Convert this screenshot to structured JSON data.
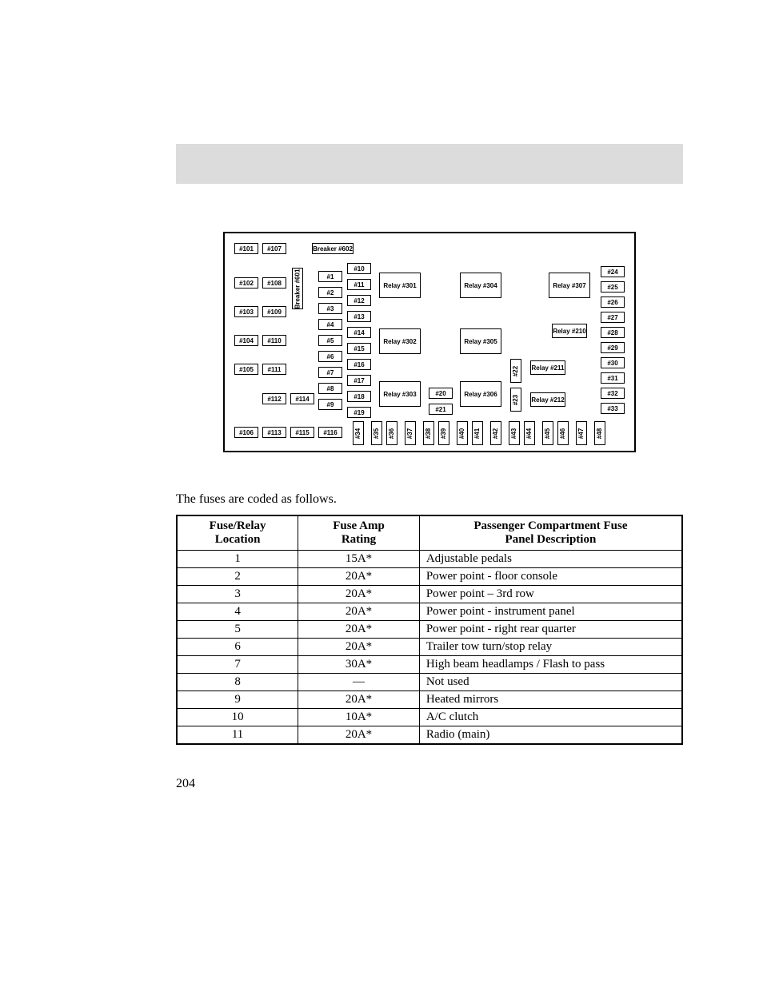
{
  "intro_text": "The fuses are coded as follows.",
  "page_number": "204",
  "headers": {
    "loc1": "Fuse/Relay",
    "loc2": "Location",
    "amp1": "Fuse Amp",
    "amp2": "Rating",
    "desc1": "Passenger Compartment Fuse",
    "desc2": "Panel Description"
  },
  "rows": [
    {
      "loc": "1",
      "amp": "15A*",
      "desc": "Adjustable pedals"
    },
    {
      "loc": "2",
      "amp": "20A*",
      "desc": "Power point - floor console"
    },
    {
      "loc": "3",
      "amp": "20A*",
      "desc": "Power point – 3rd row"
    },
    {
      "loc": "4",
      "amp": "20A*",
      "desc": "Power point - instrument panel"
    },
    {
      "loc": "5",
      "amp": "20A*",
      "desc": "Power point - right rear quarter"
    },
    {
      "loc": "6",
      "amp": "20A*",
      "desc": "Trailer tow turn/stop relay"
    },
    {
      "loc": "7",
      "amp": "30A*",
      "desc": "High beam headlamps / Flash to pass"
    },
    {
      "loc": "8",
      "amp": "—",
      "desc": "Not used"
    },
    {
      "loc": "9",
      "amp": "20A*",
      "desc": "Heated mirrors"
    },
    {
      "loc": "10",
      "amp": "10A*",
      "desc": "A/C clutch"
    },
    {
      "loc": "11",
      "amp": "20A*",
      "desc": "Radio (main)"
    }
  ],
  "diagram": {
    "breaker602": "Breaker  #602",
    "breaker601": "Breaker  #601",
    "col_left1": [
      "#101",
      "#102",
      "#103",
      "#104",
      "#105",
      "#106"
    ],
    "col_left2": [
      "#107",
      "#108",
      "#109",
      "#110",
      "#111",
      "#112",
      "#113"
    ],
    "col_left3": [
      "#114",
      "#115"
    ],
    "col_116": "#116",
    "col_mid1": [
      "#1",
      "#2",
      "#3",
      "#4",
      "#5",
      "#6",
      "#7",
      "#8",
      "#9"
    ],
    "col_mid2": [
      "#10",
      "#11",
      "#12",
      "#13",
      "#14",
      "#15",
      "#16",
      "#17",
      "#18",
      "#19"
    ],
    "relays_col1": [
      "Relay #301",
      "Relay #302",
      "Relay #303"
    ],
    "f20": "#20",
    "f21": "#21",
    "relays_col2": [
      "Relay #304",
      "Relay #305",
      "Relay #306"
    ],
    "f22": "#22",
    "f23": "#23",
    "relays_col3": [
      "Relay #307",
      "Relay #210",
      "Relay #211",
      "Relay #212"
    ],
    "col_right": [
      "#24",
      "#25",
      "#26",
      "#27",
      "#28",
      "#29",
      "#30",
      "#31",
      "#32",
      "#33"
    ],
    "bottom": [
      "#34",
      "#35",
      "#36",
      "#37",
      "#38",
      "#39",
      "#40",
      "#41",
      "#42",
      "#43",
      "#44",
      "#45",
      "#46",
      "#47",
      "#48"
    ],
    "colors": {
      "border": "#000000",
      "background": "#ffffff"
    }
  }
}
